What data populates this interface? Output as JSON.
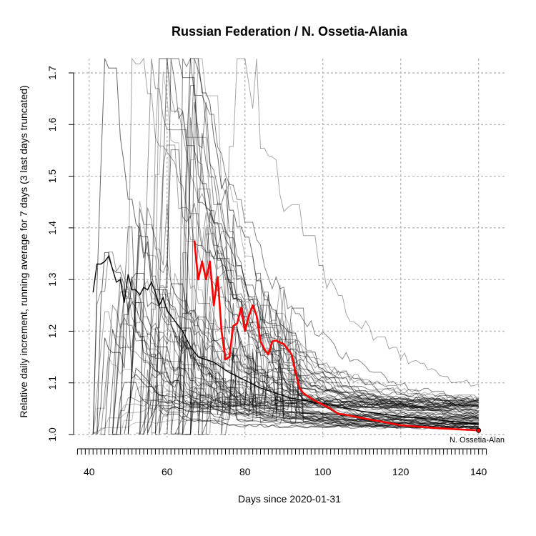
{
  "chart_data": {
    "type": "line",
    "title": "Russian Federation / N. Ossetia-Alania",
    "xlabel": "Days since 2020-01-31",
    "ylabel": "Relative daily increment, running average for 7 days (3 last days truncated)",
    "xlim": [
      36,
      143
    ],
    "ylim": [
      1.0,
      1.7
    ],
    "x_ticks": [
      40,
      60,
      80,
      100,
      120,
      140
    ],
    "y_ticks": [
      1.0,
      1.1,
      1.2,
      1.3,
      1.4,
      1.5,
      1.6,
      1.7
    ],
    "grid": true,
    "highlight_label": "N. Ossetia-Alan",
    "colors": {
      "highlight": "#ff0000",
      "reference": "#000000",
      "background_series": "#000000",
      "grid": "#bbbbbb"
    },
    "series": [
      {
        "name": "N. Ossetia-Alan",
        "role": "highlight",
        "points": [
          [
            67,
            1.375
          ],
          [
            68,
            1.3
          ],
          [
            69,
            1.335
          ],
          [
            70,
            1.3
          ],
          [
            71,
            1.335
          ],
          [
            72,
            1.25
          ],
          [
            73,
            1.305
          ],
          [
            74,
            1.2
          ],
          [
            75,
            1.145
          ],
          [
            76,
            1.15
          ],
          [
            77,
            1.21
          ],
          [
            78,
            1.215
          ],
          [
            79,
            1.245
          ],
          [
            80,
            1.2
          ],
          [
            81,
            1.23
          ],
          [
            82,
            1.25
          ],
          [
            83,
            1.23
          ],
          [
            84,
            1.18
          ],
          [
            85,
            1.165
          ],
          [
            86,
            1.155
          ],
          [
            87,
            1.18
          ],
          [
            88,
            1.182
          ],
          [
            89,
            1.178
          ],
          [
            90,
            1.175
          ],
          [
            91,
            1.165
          ],
          [
            92,
            1.155
          ],
          [
            93,
            1.12
          ],
          [
            94,
            1.09
          ],
          [
            95,
            1.08
          ],
          [
            96,
            1.075
          ],
          [
            97,
            1.07
          ],
          [
            98,
            1.065
          ],
          [
            100,
            1.058
          ],
          [
            102,
            1.05
          ],
          [
            104,
            1.04
          ],
          [
            106,
            1.038
          ],
          [
            110,
            1.032
          ],
          [
            115,
            1.025
          ],
          [
            120,
            1.018
          ],
          [
            125,
            1.015
          ],
          [
            130,
            1.012
          ],
          [
            135,
            1.01
          ],
          [
            140,
            1.008
          ]
        ]
      },
      {
        "name": "Russian Federation",
        "role": "reference",
        "points": [
          [
            41,
            1.275
          ],
          [
            42,
            1.33
          ],
          [
            43,
            1.33
          ],
          [
            44,
            1.335
          ],
          [
            45,
            1.345
          ],
          [
            46,
            1.32
          ],
          [
            47,
            1.295
          ],
          [
            48,
            1.3
          ],
          [
            49,
            1.255
          ],
          [
            50,
            1.31
          ],
          [
            51,
            1.28
          ],
          [
            52,
            1.28
          ],
          [
            53,
            1.27
          ],
          [
            54,
            1.285
          ],
          [
            55,
            1.28
          ],
          [
            56,
            1.295
          ],
          [
            57,
            1.275
          ],
          [
            58,
            1.25
          ],
          [
            59,
            1.265
          ],
          [
            60,
            1.24
          ],
          [
            62,
            1.22
          ],
          [
            64,
            1.2
          ],
          [
            66,
            1.17
          ],
          [
            68,
            1.15
          ],
          [
            72,
            1.14
          ],
          [
            76,
            1.12
          ],
          [
            80,
            1.105
          ],
          [
            84,
            1.09
          ],
          [
            88,
            1.08
          ],
          [
            92,
            1.07
          ],
          [
            96,
            1.065
          ],
          [
            100,
            1.06
          ],
          [
            110,
            1.045
          ],
          [
            120,
            1.035
          ],
          [
            130,
            1.028
          ],
          [
            140,
            1.02
          ]
        ]
      }
    ]
  }
}
